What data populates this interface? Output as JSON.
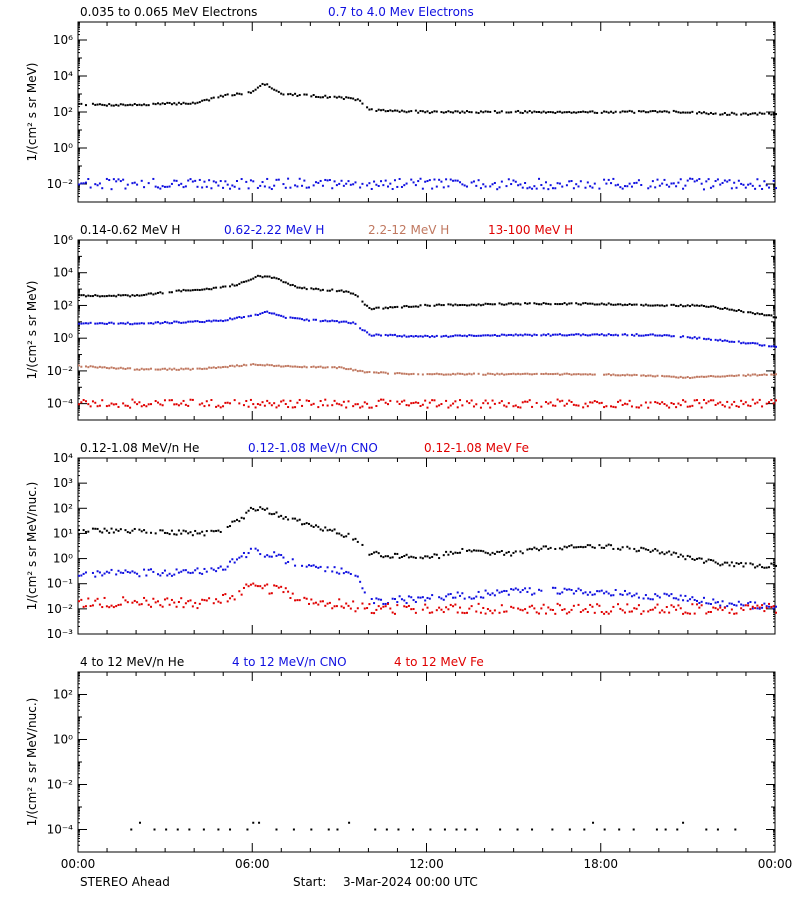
{
  "footer": {
    "spacecraft": "STEREO Ahead",
    "start_label": "Start:",
    "start_date": "3-Mar-2024 00:00 UTC"
  },
  "x_axis": {
    "range_hours": [
      0,
      24
    ],
    "tick_hours": [
      0,
      6,
      12,
      18,
      24
    ],
    "tick_labels": [
      "00:00",
      "06:00",
      "12:00",
      "18:00",
      "00:00"
    ]
  },
  "colors": {
    "black": "#000000",
    "blue": "#1010e0",
    "brown": "#c07860",
    "red": "#e00000"
  },
  "chart_data": [
    {
      "type": "scatter",
      "ylabel": "1/(cm² s sr MeV)",
      "yscale": "log",
      "ylim_exp": [
        -3,
        7
      ],
      "ytick_exps": [
        -2,
        0,
        2,
        4,
        6
      ],
      "series": [
        {
          "name": "0.035 to 0.065 MeV Electrons",
          "color": "black",
          "x": [
            0,
            2,
            4,
            5,
            5.5,
            6,
            6.3,
            6.5,
            7,
            8,
            9,
            9.6,
            10,
            12,
            15,
            18,
            21,
            22,
            24
          ],
          "log_y": [
            2.4,
            2.4,
            2.5,
            2.9,
            3.0,
            3.1,
            3.6,
            3.5,
            3.0,
            2.9,
            2.8,
            2.7,
            2.1,
            2.0,
            2.0,
            2.0,
            2.0,
            1.9,
            1.9
          ],
          "scatter": 0.06
        },
        {
          "name": "0.7 to 4.0 Mev Electrons",
          "color": "blue",
          "x": [
            0,
            24
          ],
          "log_y": [
            -2.0,
            -2.0
          ],
          "scatter": 0.3
        }
      ]
    },
    {
      "type": "scatter",
      "ylabel": "1/(cm² s sr MeV)",
      "yscale": "log",
      "ylim_exp": [
        -5,
        6
      ],
      "ytick_exps": [
        -4,
        -2,
        0,
        2,
        4,
        6
      ],
      "series": [
        {
          "name": "0.14-0.62 MeV H",
          "color": "black",
          "x": [
            0,
            2,
            3.5,
            4.5,
            5.5,
            6.2,
            6.7,
            7.5,
            8,
            9,
            9.5,
            10,
            12,
            15,
            18,
            20,
            21.5,
            23,
            24
          ],
          "log_y": [
            2.6,
            2.6,
            2.9,
            3.0,
            3.3,
            3.8,
            3.7,
            3.1,
            3.0,
            2.9,
            2.7,
            1.8,
            2.0,
            2.1,
            2.1,
            2.0,
            2.0,
            1.6,
            1.3
          ],
          "scatter": 0.05
        },
        {
          "name": "0.62-2.22 MeV H",
          "color": "blue",
          "x": [
            0,
            2,
            4,
            5,
            6,
            6.5,
            7,
            8,
            9,
            9.5,
            10,
            12,
            15,
            18,
            20,
            22,
            24
          ],
          "log_y": [
            0.9,
            0.9,
            1.0,
            1.1,
            1.4,
            1.6,
            1.3,
            1.1,
            1.0,
            0.9,
            0.2,
            0.1,
            0.2,
            0.2,
            0.2,
            -0.1,
            -0.5
          ],
          "scatter": 0.05
        },
        {
          "name": "2.2-12 MeV H",
          "color": "brown",
          "x": [
            0,
            2,
            4,
            6,
            7,
            9,
            10,
            12,
            15,
            18,
            21,
            24
          ],
          "log_y": [
            -1.7,
            -1.9,
            -1.9,
            -1.6,
            -1.7,
            -1.8,
            -2.1,
            -2.2,
            -2.2,
            -2.2,
            -2.4,
            -2.2
          ],
          "scatter": 0.04
        },
        {
          "name": "13-100 MeV H",
          "color": "red",
          "x": [
            0,
            24
          ],
          "log_y": [
            -4.0,
            -4.0
          ],
          "scatter": 0.25
        }
      ]
    },
    {
      "type": "scatter",
      "ylabel": "1/(cm² s sr MeV/nuc.)",
      "yscale": "log",
      "ylim_exp": [
        -3,
        4
      ],
      "ytick_exps": [
        -3,
        -2,
        -1,
        0,
        1,
        2,
        3,
        4
      ],
      "series": [
        {
          "name": "0.12-1.08 MeV/n He",
          "color": "black",
          "x": [
            0,
            2,
            4.5,
            5,
            5.5,
            6,
            6.5,
            7,
            7.5,
            8,
            9,
            9.5,
            10,
            11,
            12,
            13,
            15,
            16,
            17,
            18,
            20,
            21,
            22,
            24
          ],
          "log_y": [
            1.1,
            1.1,
            1.0,
            1.2,
            1.5,
            2.0,
            1.9,
            1.7,
            1.5,
            1.3,
            1.0,
            0.8,
            0.2,
            0.1,
            0.0,
            0.3,
            0.2,
            0.4,
            0.5,
            0.5,
            0.3,
            0.0,
            -0.2,
            -0.3
          ],
          "scatter": 0.1
        },
        {
          "name": "0.12-1.08 MeV/n CNO",
          "color": "blue",
          "x": [
            0,
            2,
            4,
            5,
            5.5,
            6,
            6.5,
            7,
            8,
            9,
            9.5,
            10,
            12,
            15,
            18,
            21,
            22,
            24
          ],
          "log_y": [
            -0.6,
            -0.6,
            -0.5,
            -0.4,
            0.0,
            0.3,
            0.2,
            0.0,
            -0.4,
            -0.5,
            -0.6,
            -1.7,
            -1.6,
            -1.3,
            -1.3,
            -1.6,
            -1.8,
            -1.9
          ],
          "scatter": 0.15
        },
        {
          "name": "0.12-1.08 MeV Fe",
          "color": "red",
          "x": [
            0,
            2,
            4,
            5,
            5.5,
            6,
            6.5,
            7,
            8,
            9,
            10,
            24
          ],
          "log_y": [
            -1.8,
            -1.7,
            -1.8,
            -1.6,
            -1.4,
            -1.0,
            -1.2,
            -1.3,
            -1.8,
            -1.8,
            -2.0,
            -2.0
          ],
          "scatter": 0.2
        }
      ]
    },
    {
      "type": "scatter",
      "ylabel": "1/(cm² s sr MeV/nuc.)",
      "yscale": "log",
      "ylim_exp": [
        -5,
        3
      ],
      "ytick_exps": [
        -4,
        -2,
        0,
        2
      ],
      "series": [
        {
          "name": "4 to 12 MeV/n He",
          "color": "black",
          "x": [
            1.8,
            2.1,
            2.6,
            3.0,
            3.4,
            3.8,
            4.3,
            4.8,
            5.2,
            5.8,
            6.0,
            6.2,
            6.8,
            7.4,
            8.0,
            8.6,
            8.9,
            9.3,
            10.2,
            10.6,
            11.0,
            11.5,
            12.1,
            12.6,
            13.0,
            13.3,
            13.7,
            14.5,
            15.1,
            15.6,
            16.3,
            16.9,
            17.4,
            17.7,
            18.1,
            18.6,
            19.1,
            19.9,
            20.2,
            20.6,
            20.8,
            21.6,
            22.0,
            22.6
          ],
          "log_y": [
            -4.0,
            -3.7,
            -4.0,
            -4.0,
            -4.0,
            -4.0,
            -4.0,
            -4.0,
            -4.0,
            -4.0,
            -3.7,
            -3.7,
            -4.0,
            -4.0,
            -4.0,
            -4.0,
            -4.0,
            -3.7,
            -4.0,
            -4.0,
            -4.0,
            -4.0,
            -4.0,
            -4.0,
            -4.0,
            -4.0,
            -4.0,
            -4.0,
            -4.0,
            -4.0,
            -4.0,
            -4.0,
            -4.0,
            -3.7,
            -4.0,
            -4.0,
            -4.0,
            -4.0,
            -4.0,
            -4.0,
            -3.7,
            -4.0,
            -4.0,
            -4.0
          ],
          "scatter": 0.0
        },
        {
          "name": "4 to 12 MeV/n CNO",
          "color": "blue",
          "x": [],
          "log_y": [],
          "scatter": 0
        },
        {
          "name": "4 to 12 MeV Fe",
          "color": "red",
          "x": [],
          "log_y": [],
          "scatter": 0
        }
      ]
    }
  ]
}
